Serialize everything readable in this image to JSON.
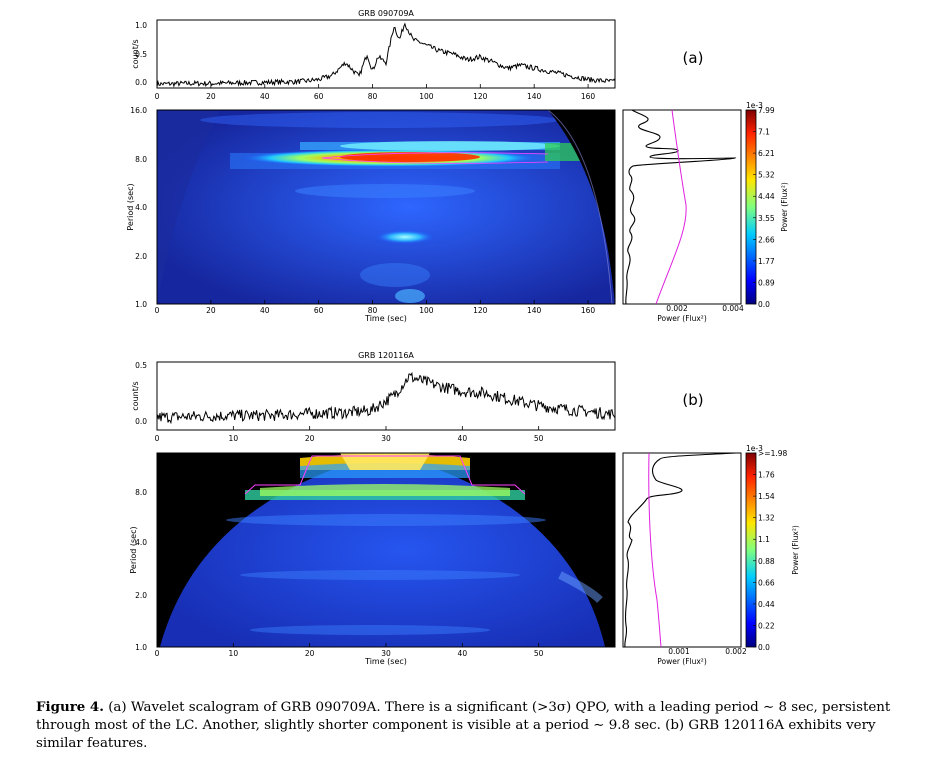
{
  "chart_data": [
    {
      "panel_label": "(a)",
      "title": "GRB 090709A",
      "lightcurve": {
        "type": "line",
        "ylabel": "count/s",
        "yticks": [
          "1.0",
          "0.5",
          "0.0"
        ],
        "xlim": [
          0,
          170
        ],
        "ylim": [
          -0.05,
          1.15
        ],
        "xticks": [
          "0",
          "20",
          "40",
          "60",
          "80",
          "100",
          "120",
          "140",
          "160"
        ],
        "points": [
          [
            0,
            0.02
          ],
          [
            10,
            0.03
          ],
          [
            20,
            0.03
          ],
          [
            30,
            0.04
          ],
          [
            40,
            0.05
          ],
          [
            50,
            0.06
          ],
          [
            55,
            0.07
          ],
          [
            60,
            0.1
          ],
          [
            65,
            0.17
          ],
          [
            70,
            0.4
          ],
          [
            72,
            0.3
          ],
          [
            75,
            0.15
          ],
          [
            78,
            0.55
          ],
          [
            80,
            0.25
          ],
          [
            82,
            0.5
          ],
          [
            85,
            0.4
          ],
          [
            88,
            1.05
          ],
          [
            90,
            0.8
          ],
          [
            92,
            1.1
          ],
          [
            95,
            0.8
          ],
          [
            98,
            0.75
          ],
          [
            100,
            0.7
          ],
          [
            105,
            0.6
          ],
          [
            110,
            0.55
          ],
          [
            115,
            0.45
          ],
          [
            120,
            0.5
          ],
          [
            125,
            0.4
          ],
          [
            130,
            0.3
          ],
          [
            135,
            0.35
          ],
          [
            140,
            0.3
          ],
          [
            145,
            0.25
          ],
          [
            150,
            0.2
          ],
          [
            155,
            0.15
          ],
          [
            160,
            0.1
          ],
          [
            165,
            0.08
          ],
          [
            170,
            0.06
          ]
        ]
      },
      "scalogram": {
        "type": "heatmap",
        "xlabel": "Time (sec)",
        "ylabel": "Period (sec)",
        "xticks": [
          "0",
          "20",
          "40",
          "60",
          "80",
          "100",
          "120",
          "140",
          "160"
        ],
        "yticks": [
          "16.0",
          "8.0",
          "4.0",
          "2.0",
          "1.0"
        ],
        "ylim": [
          1,
          16
        ],
        "yscale": "log2",
        "features": [
          {
            "period": 8.0,
            "t_start": 60,
            "t_end": 150,
            "peak_time": 90,
            "strength": 1.0
          },
          {
            "period": 9.8,
            "t_start": 70,
            "t_end": 150,
            "peak_time": 110,
            "strength": 0.45
          },
          {
            "period": 2.8,
            "t_start": 80,
            "t_end": 105,
            "peak_time": 90,
            "strength": 0.35
          },
          {
            "period": 5.0,
            "t_start": 50,
            "t_end": 140,
            "peak_time": 100,
            "strength": 0.22
          }
        ]
      },
      "global_power": {
        "xlabel": "Power (Flux²)",
        "xticks": [
          "0.002",
          "0.004"
        ],
        "xlim": [
          0,
          0.0042
        ]
      },
      "colorbar": {
        "label": "Power (Flux²)",
        "scale_label": "1e-3",
        "ticks": [
          "7.99",
          "7.1",
          "6.21",
          "5.32",
          "4.44",
          "3.55",
          "2.66",
          "1.77",
          "0.89",
          "0.0"
        ]
      }
    },
    {
      "panel_label": "(b)",
      "title": "GRB 120116A",
      "lightcurve": {
        "type": "line",
        "ylabel": "count/s",
        "yticks": [
          "0.5",
          "0.0"
        ],
        "xlim": [
          0,
          60
        ],
        "ylim": [
          -0.1,
          0.6
        ],
        "xticks": [
          "0",
          "10",
          "20",
          "30",
          "40",
          "50"
        ],
        "points": [
          [
            0,
            0.03
          ],
          [
            5,
            0.04
          ],
          [
            10,
            0.05
          ],
          [
            15,
            0.05
          ],
          [
            20,
            0.07
          ],
          [
            25,
            0.08
          ],
          [
            28,
            0.1
          ],
          [
            31,
            0.25
          ],
          [
            33,
            0.45
          ],
          [
            35,
            0.4
          ],
          [
            37,
            0.35
          ],
          [
            40,
            0.3
          ],
          [
            43,
            0.28
          ],
          [
            46,
            0.22
          ],
          [
            50,
            0.15
          ],
          [
            55,
            0.1
          ],
          [
            60,
            0.06
          ]
        ]
      },
      "scalogram": {
        "type": "heatmap",
        "xlabel": "Time (sec)",
        "ylabel": "Period (sec)",
        "xticks": [
          "0",
          "10",
          "20",
          "30",
          "40",
          "50"
        ],
        "yticks": [
          "8.0",
          "4.0",
          "2.0",
          "1.0"
        ],
        "ylim": [
          1,
          16
        ],
        "yscale": "log2",
        "features": [
          {
            "period": 8.0,
            "t_start": 12,
            "t_end": 48,
            "peak_time": 30,
            "strength": 0.55
          },
          {
            "period": 14.0,
            "t_start": 20,
            "t_end": 40,
            "peak_time": 30,
            "strength": 1.0
          },
          {
            "period": 10.0,
            "t_start": 25,
            "t_end": 35,
            "peak_time": 30,
            "strength": 0.6
          }
        ]
      },
      "global_power": {
        "xlabel": "Power (Flux²)",
        "xticks": [
          "0.001",
          "0.002"
        ],
        "xlim": [
          0,
          0.0021
        ]
      },
      "colorbar": {
        "label": "Power (Flux²)",
        "scale_label": "1e-3",
        "ticks": [
          ">=1.98",
          "1.76",
          "1.54",
          "1.32",
          "1.1",
          "0.88",
          "0.66",
          "0.44",
          "0.22",
          "0.0"
        ]
      }
    }
  ],
  "caption": {
    "label": "Figure 4.",
    "text": "(a) Wavelet scalogram of GRB 090709A. There is a significant (>3σ) QPO, with a leading period ∼ 8 sec, persistent through most of the LC. Another, slightly shorter component is visible at a period ∼ 9.8 sec. (b) GRB 120116A exhibits very similar features."
  }
}
